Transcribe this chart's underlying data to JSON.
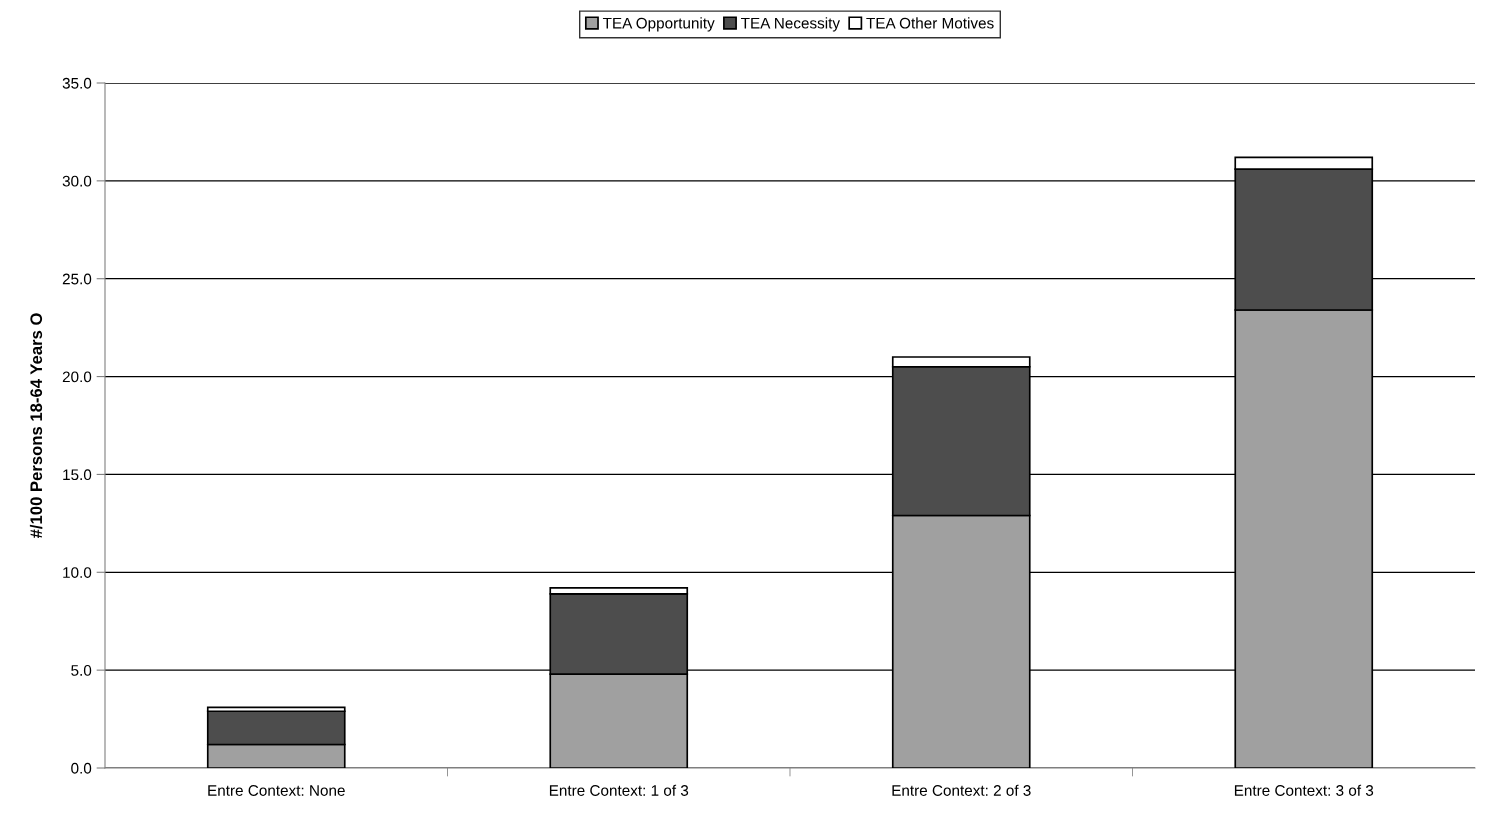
{
  "chart_data": {
    "type": "bar",
    "stacked": true,
    "ylabel": "#/100 Persons 18-64 Years O",
    "categories": [
      "Entre Context: None",
      "Entre Context: 1 of 3",
      "Entre Context: 2 of 3",
      "Entre Context: 3 of 3"
    ],
    "series": [
      {
        "name": "TEA Opportunity",
        "color": "#a0a0a0",
        "values": [
          1.2,
          4.8,
          12.9,
          23.4
        ]
      },
      {
        "name": "TEA Necessity",
        "color": "#4d4d4d",
        "values": [
          1.7,
          4.1,
          7.6,
          7.2
        ]
      },
      {
        "name": "TEA Other Motives",
        "color": "#ffffff",
        "values": [
          0.2,
          0.3,
          0.5,
          0.6
        ]
      }
    ],
    "ylim": [
      0,
      35
    ],
    "yticks": [
      {
        "value": 0,
        "label": "0.0"
      },
      {
        "value": 5,
        "label": "5.0"
      },
      {
        "value": 10,
        "label": "10.0"
      },
      {
        "value": 15,
        "label": "15.0"
      },
      {
        "value": 20,
        "label": "20.0"
      },
      {
        "value": 25,
        "label": "25.0"
      },
      {
        "value": 30,
        "label": "30.0"
      },
      {
        "value": 35,
        "label": "35.0"
      }
    ],
    "grid": "y",
    "legend": "top"
  }
}
